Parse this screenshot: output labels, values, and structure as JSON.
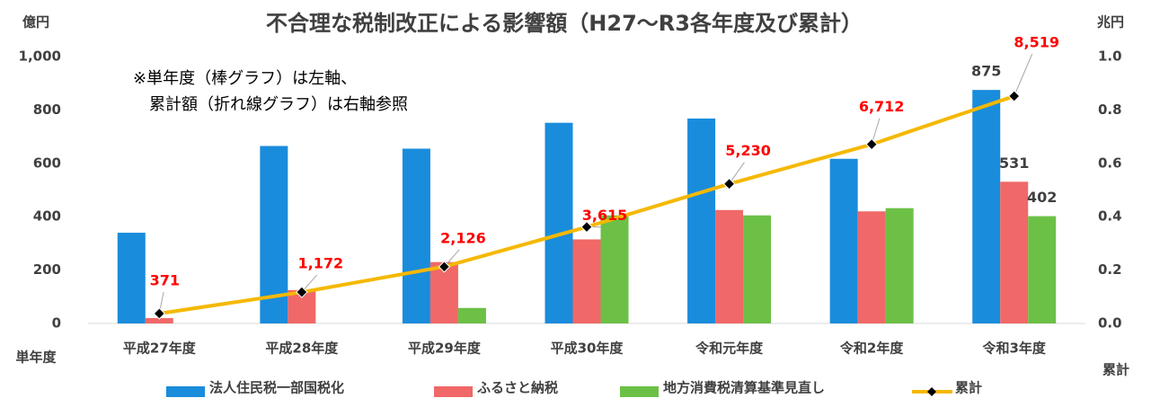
{
  "chart_data": {
    "type": "bar",
    "title": "不合理な税制改正による影響額（H27〜R3各年度及び累計）",
    "y_unit": "億円",
    "y2_unit": "兆円",
    "y_label": "単年度",
    "y2_label": "累計",
    "annotations": [
      "※単年度（棒グラフ）は左軸、",
      "累計額（折れ線グラフ）は右軸参照"
    ],
    "categories": [
      "平成27年度",
      "平成28年度",
      "平成29年度",
      "平成30年度",
      "令和元年度",
      "令和2年度",
      "令和3年度"
    ],
    "series": [
      {
        "name": "法人住民税一部国税化",
        "color": "#1a8cdc",
        "values": [
          340,
          665,
          655,
          752,
          768,
          617,
          875
        ],
        "value_labels": [
          null,
          null,
          null,
          null,
          null,
          null,
          "875"
        ]
      },
      {
        "name": "ふるさと納税",
        "color": "#f06868",
        "values": [
          20,
          125,
          230,
          315,
          425,
          420,
          531
        ],
        "value_labels": [
          null,
          null,
          null,
          null,
          null,
          null,
          "531"
        ]
      },
      {
        "name": "地方消費税清算基準見直し",
        "color": "#6cc046",
        "values": [
          0,
          0,
          58,
          405,
          405,
          432,
          402
        ],
        "value_labels": [
          null,
          null,
          null,
          null,
          null,
          null,
          "402"
        ]
      },
      {
        "name": "累計",
        "type": "line",
        "axis": "y2",
        "color": "#f5b800",
        "values": [
          0.0371,
          0.1172,
          0.2126,
          0.3615,
          0.523,
          0.6712,
          0.8519
        ],
        "value_labels": [
          "371",
          "1,172",
          "2,126",
          "3,615",
          "5,230",
          "6,712",
          "8,519"
        ]
      }
    ],
    "ylim": [
      0,
      1000
    ],
    "yticks": [
      0,
      200,
      400,
      600,
      800,
      {
        "value": 1000,
        "label": "1,000"
      }
    ],
    "y2lim": [
      0,
      1.0
    ],
    "y2ticks": [
      {
        "value": 0,
        "label": "0.0"
      },
      {
        "value": 0.2,
        "label": "0.2"
      },
      {
        "value": 0.4,
        "label": "0.4"
      },
      {
        "value": 0.6,
        "label": "0.6"
      },
      {
        "value": 0.8,
        "label": "0.8"
      },
      {
        "value": 1.0,
        "label": "1.0"
      }
    ],
    "legend": "bottom"
  }
}
